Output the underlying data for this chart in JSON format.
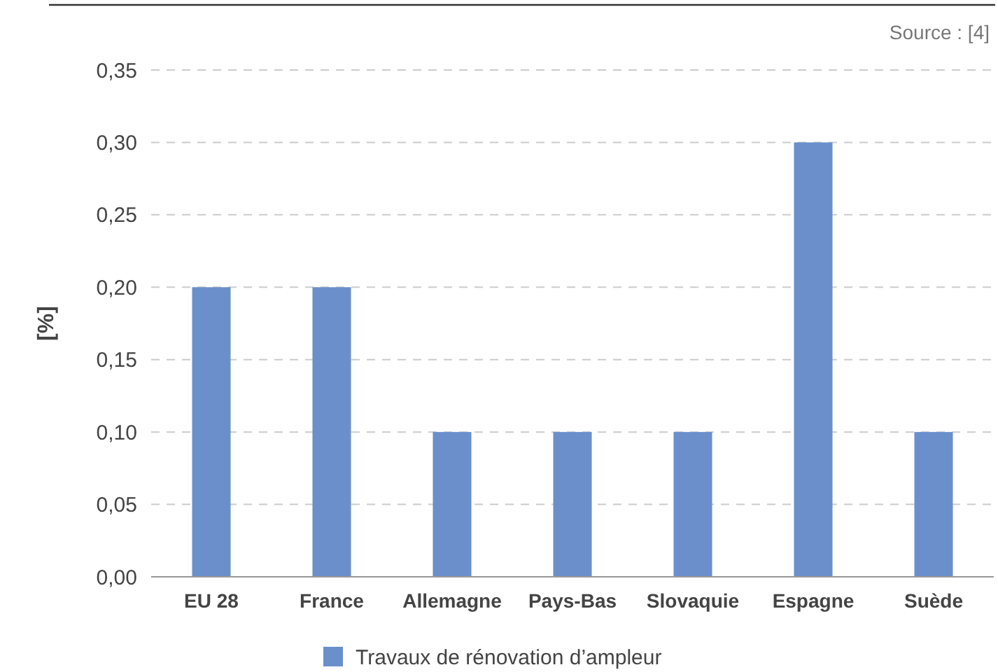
{
  "chart_data": {
    "type": "bar",
    "ylabel": "[%]",
    "categories": [
      "EU 28",
      "France",
      "Allemagne",
      "Pays-Bas",
      "Slovaquie",
      "Espagne",
      "Suède"
    ],
    "series": [
      {
        "name": "Travaux de rénovation d’ampleur",
        "color": "#6a8fcb",
        "values": [
          0.2,
          0.2,
          0.1,
          0.1,
          0.1,
          0.3,
          0.1
        ]
      }
    ],
    "ylim": [
      0,
      0.35
    ],
    "yticks": [
      {
        "value": 0,
        "label": "0,00"
      },
      {
        "value": 0.05,
        "label": "0,05"
      },
      {
        "value": 0.1,
        "label": "0,10"
      },
      {
        "value": 0.15,
        "label": "0,15"
      },
      {
        "value": 0.2,
        "label": "0,20"
      },
      {
        "value": 0.25,
        "label": "0,25"
      },
      {
        "value": 0.3,
        "label": "0,30"
      },
      {
        "value": 0.35,
        "label": "0,35"
      }
    ],
    "grid": "y",
    "legend": "bottom",
    "annotations": [
      "Source : [4]"
    ]
  }
}
